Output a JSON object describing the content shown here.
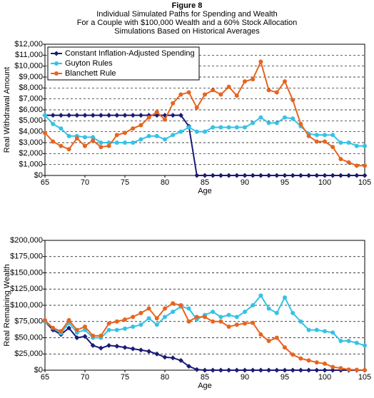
{
  "figure_label": "Figure 8",
  "title_lines": [
    "Individual Simulated Paths for Spending and Wealth",
    "For a Couple with $100,000 Wealth and a 60% Stock Allocation",
    "Simulations Based on Historical Averages"
  ],
  "chart_data": [
    {
      "type": "line",
      "ylabel": "Real Withdrawal Amount",
      "xlabel": "Age",
      "legend": "upper left",
      "grid": true,
      "x": [
        65,
        66,
        67,
        68,
        69,
        70,
        71,
        72,
        73,
        74,
        75,
        76,
        77,
        78,
        79,
        80,
        81,
        82,
        83,
        84,
        85,
        86,
        87,
        88,
        89,
        90,
        91,
        92,
        93,
        94,
        95,
        96,
        97,
        98,
        99,
        100,
        101,
        102,
        103,
        104,
        105
      ],
      "xlim": [
        65,
        105
      ],
      "xticks": [
        65,
        70,
        75,
        80,
        85,
        90,
        95,
        100,
        105
      ],
      "ylim": [
        0,
        12000
      ],
      "yticks": [
        {
          "value": 0,
          "label": "$0"
        },
        {
          "value": 1000,
          "label": "$1,000"
        },
        {
          "value": 2000,
          "label": "$2,000"
        },
        {
          "value": 3000,
          "label": "$3,000"
        },
        {
          "value": 4000,
          "label": "$4,000"
        },
        {
          "value": 5000,
          "label": "$5,000"
        },
        {
          "value": 6000,
          "label": "$6,000"
        },
        {
          "value": 7000,
          "label": "$7,000"
        },
        {
          "value": 8000,
          "label": "$8,000"
        },
        {
          "value": 9000,
          "label": "$9,000"
        },
        {
          "value": 10000,
          "label": "$10,000"
        },
        {
          "value": 11000,
          "label": "$11,000"
        },
        {
          "value": 12000,
          "label": "$12,000"
        }
      ],
      "series": [
        {
          "name": "Constant Inflation-Adjusted Spending",
          "color": "#1b1b78",
          "marker": "diamond",
          "values": [
            5500,
            5500,
            5500,
            5500,
            5500,
            5500,
            5500,
            5500,
            5500,
            5500,
            5500,
            5500,
            5500,
            5500,
            5500,
            5500,
            5500,
            5500,
            4500,
            0,
            0,
            0,
            0,
            0,
            0,
            0,
            0,
            0,
            0,
            0,
            0,
            0,
            0,
            0,
            0,
            0,
            0,
            0,
            0,
            0,
            0
          ]
        },
        {
          "name": "Guyton Rules",
          "color": "#35c2e6",
          "marker": "circle",
          "values": [
            5500,
            4700,
            4300,
            3600,
            3600,
            3500,
            3500,
            3000,
            3000,
            3000,
            3000,
            3000,
            3300,
            3600,
            3600,
            3300,
            3700,
            4000,
            4400,
            4000,
            4000,
            4400,
            4400,
            4400,
            4400,
            4400,
            4800,
            5300,
            4800,
            4800,
            5300,
            5200,
            4500,
            3800,
            3700,
            3700,
            3700,
            3000,
            3000,
            2700,
            2700
          ]
        },
        {
          "name": "Blanchett Rule",
          "color": "#e8641e",
          "marker": "circle",
          "values": [
            3900,
            3100,
            2700,
            2400,
            3400,
            2700,
            3200,
            2600,
            2700,
            3700,
            3900,
            4300,
            4600,
            5300,
            5800,
            5100,
            6600,
            7400,
            7600,
            6200,
            7400,
            7800,
            7400,
            8100,
            7300,
            8600,
            8800,
            10400,
            7800,
            7600,
            8600,
            6900,
            4700,
            3600,
            3100,
            3100,
            2600,
            1500,
            1200,
            900,
            900
          ]
        }
      ]
    },
    {
      "type": "line",
      "ylabel": "Real Remaining Wealth",
      "xlabel": "Age",
      "grid": true,
      "x": [
        65,
        66,
        67,
        68,
        69,
        70,
        71,
        72,
        73,
        74,
        75,
        76,
        77,
        78,
        79,
        80,
        81,
        82,
        83,
        84,
        85,
        86,
        87,
        88,
        89,
        90,
        91,
        92,
        93,
        94,
        95,
        96,
        97,
        98,
        99,
        100,
        101,
        102,
        103,
        104,
        105
      ],
      "xlim": [
        65,
        105
      ],
      "xticks": [
        65,
        70,
        75,
        80,
        85,
        90,
        95,
        100,
        105
      ],
      "ylim": [
        0,
        200000
      ],
      "yticks": [
        {
          "value": 0,
          "label": "$0"
        },
        {
          "value": 25000,
          "label": "$25,000"
        },
        {
          "value": 50000,
          "label": "$50,000"
        },
        {
          "value": 75000,
          "label": "$75,000"
        },
        {
          "value": 100000,
          "label": "$100,000"
        },
        {
          "value": 125000,
          "label": "$125,000"
        },
        {
          "value": 150000,
          "label": "$150,000"
        },
        {
          "value": 175000,
          "label": "$175,000"
        },
        {
          "value": 200000,
          "label": "$200,000"
        }
      ],
      "series": [
        {
          "name": "Constant Inflation-Adjusted Spending",
          "color": "#1b1b78",
          "marker": "diamond",
          "values": [
            75000,
            62000,
            55000,
            65000,
            50000,
            52000,
            38000,
            34000,
            38000,
            37000,
            35000,
            33000,
            31000,
            29000,
            25000,
            20000,
            19000,
            15000,
            6000,
            1000,
            0,
            0,
            0,
            0,
            0,
            0,
            0,
            0,
            0,
            0,
            0,
            0,
            0,
            0,
            0,
            0,
            0,
            0,
            0,
            0,
            0
          ]
        },
        {
          "name": "Guyton Rules",
          "color": "#35c2e6",
          "marker": "circle",
          "values": [
            75000,
            65000,
            57000,
            73000,
            58000,
            62000,
            50000,
            50000,
            62000,
            62000,
            64000,
            67000,
            70000,
            80000,
            70000,
            82000,
            90000,
            98000,
            95000,
            78000,
            85000,
            90000,
            82000,
            85000,
            82000,
            90000,
            100000,
            115000,
            95000,
            88000,
            112000,
            88000,
            75000,
            62000,
            62000,
            60000,
            58000,
            45000,
            45000,
            42000,
            38000
          ]
        },
        {
          "name": "Blanchett Rule",
          "color": "#e8641e",
          "marker": "circle",
          "values": [
            77000,
            65000,
            60000,
            77000,
            62000,
            67000,
            53000,
            53000,
            72000,
            75000,
            78000,
            82000,
            88000,
            95000,
            80000,
            95000,
            103000,
            100000,
            75000,
            82000,
            82000,
            75000,
            75000,
            67000,
            70000,
            72000,
            73000,
            55000,
            45000,
            50000,
            35000,
            24000,
            18000,
            15000,
            12000,
            10000,
            5000,
            3000,
            1000,
            500,
            0
          ]
        }
      ]
    }
  ]
}
